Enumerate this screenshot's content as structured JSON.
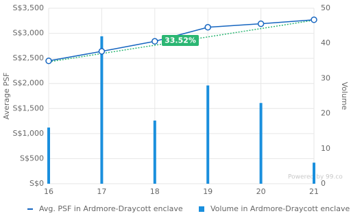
{
  "chart_data": {
    "type": "combo",
    "x": [
      16,
      17,
      18,
      19,
      20,
      21
    ],
    "xlim": [
      16,
      21
    ],
    "xticks": [
      16,
      17,
      18,
      19,
      20,
      21
    ],
    "ylim": [
      0,
      3500
    ],
    "yticks": [
      {
        "value": 0,
        "label": "S$0"
      },
      {
        "value": 500,
        "label": "S$500"
      },
      {
        "value": 1000,
        "label": "S$1,000"
      },
      {
        "value": 1500,
        "label": "S$1,500"
      },
      {
        "value": 2000,
        "label": "S$2,000"
      },
      {
        "value": 2500,
        "label": "S$2,500"
      },
      {
        "value": 3000,
        "label": "S$3,000"
      },
      {
        "value": 3500,
        "label": "S$3,500"
      }
    ],
    "y2lim": [
      0,
      50
    ],
    "y2ticks": [
      0,
      10,
      20,
      30,
      40,
      50
    ],
    "ylabel": "Average PSF",
    "y2label": "Volume",
    "grid": true,
    "series": [
      {
        "name": "Avg. PSF in Ardmore-Draycott enclave",
        "type": "line",
        "color": "#1565c0",
        "values": [
          2450,
          2640,
          2840,
          3120,
          3190,
          3270
        ]
      },
      {
        "name": "Volume in Ardmore-Draycott enclave",
        "type": "bar",
        "axis": "y2",
        "color": "#1a8fdd",
        "values": [
          16,
          42,
          18,
          28,
          23,
          6
        ]
      }
    ],
    "trend": {
      "x": [
        16,
        21
      ],
      "values": [
        2430,
        3260
      ],
      "color": "#2bb673"
    },
    "annotations": [
      "33.52%"
    ],
    "watermark": "Powered by 99.co"
  }
}
